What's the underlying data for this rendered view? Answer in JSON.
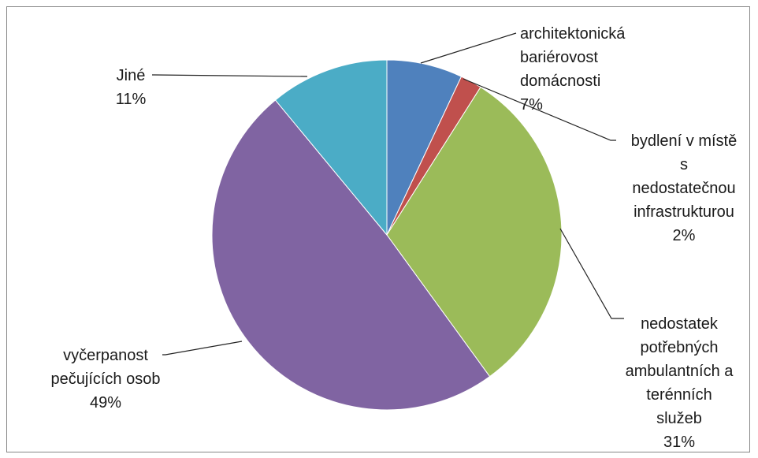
{
  "chart_data": {
    "type": "pie",
    "title": "",
    "slices": [
      {
        "label": "architektonická bariérovost domácnosti",
        "value": 7,
        "percent_label": "7%",
        "color": "#4F81BD",
        "label_lines": [
          "architektonická",
          "bariérovost",
          "domácnosti",
          "7%"
        ]
      },
      {
        "label": "bydlení v místě s nedostatečnou infrastrukturou",
        "value": 2,
        "percent_label": "2%",
        "color": "#C0504D",
        "label_lines": [
          "bydlení v místě",
          "s",
          "nedostatečnou",
          "infrastrukturou",
          "2%"
        ]
      },
      {
        "label": "nedostatek potřebných ambulantních a terénních služeb",
        "value": 31,
        "percent_label": "31%",
        "color": "#9BBB59",
        "label_lines": [
          "nedostatek",
          "potřebných",
          "ambulantních a",
          "terénních",
          "služeb",
          "31%"
        ]
      },
      {
        "label": "vyčerpanost pečujících osob",
        "value": 49,
        "percent_label": "49%",
        "color": "#8064A2",
        "label_lines": [
          "vyčerpanost",
          "pečujících osob",
          "49%"
        ]
      },
      {
        "label": "Jiné",
        "value": 11,
        "percent_label": "11%",
        "color": "#4BACC6",
        "label_lines": [
          "Jiné",
          "11%"
        ]
      }
    ],
    "start_angle_deg": 0,
    "direction": "clockwise",
    "legend": "none"
  }
}
